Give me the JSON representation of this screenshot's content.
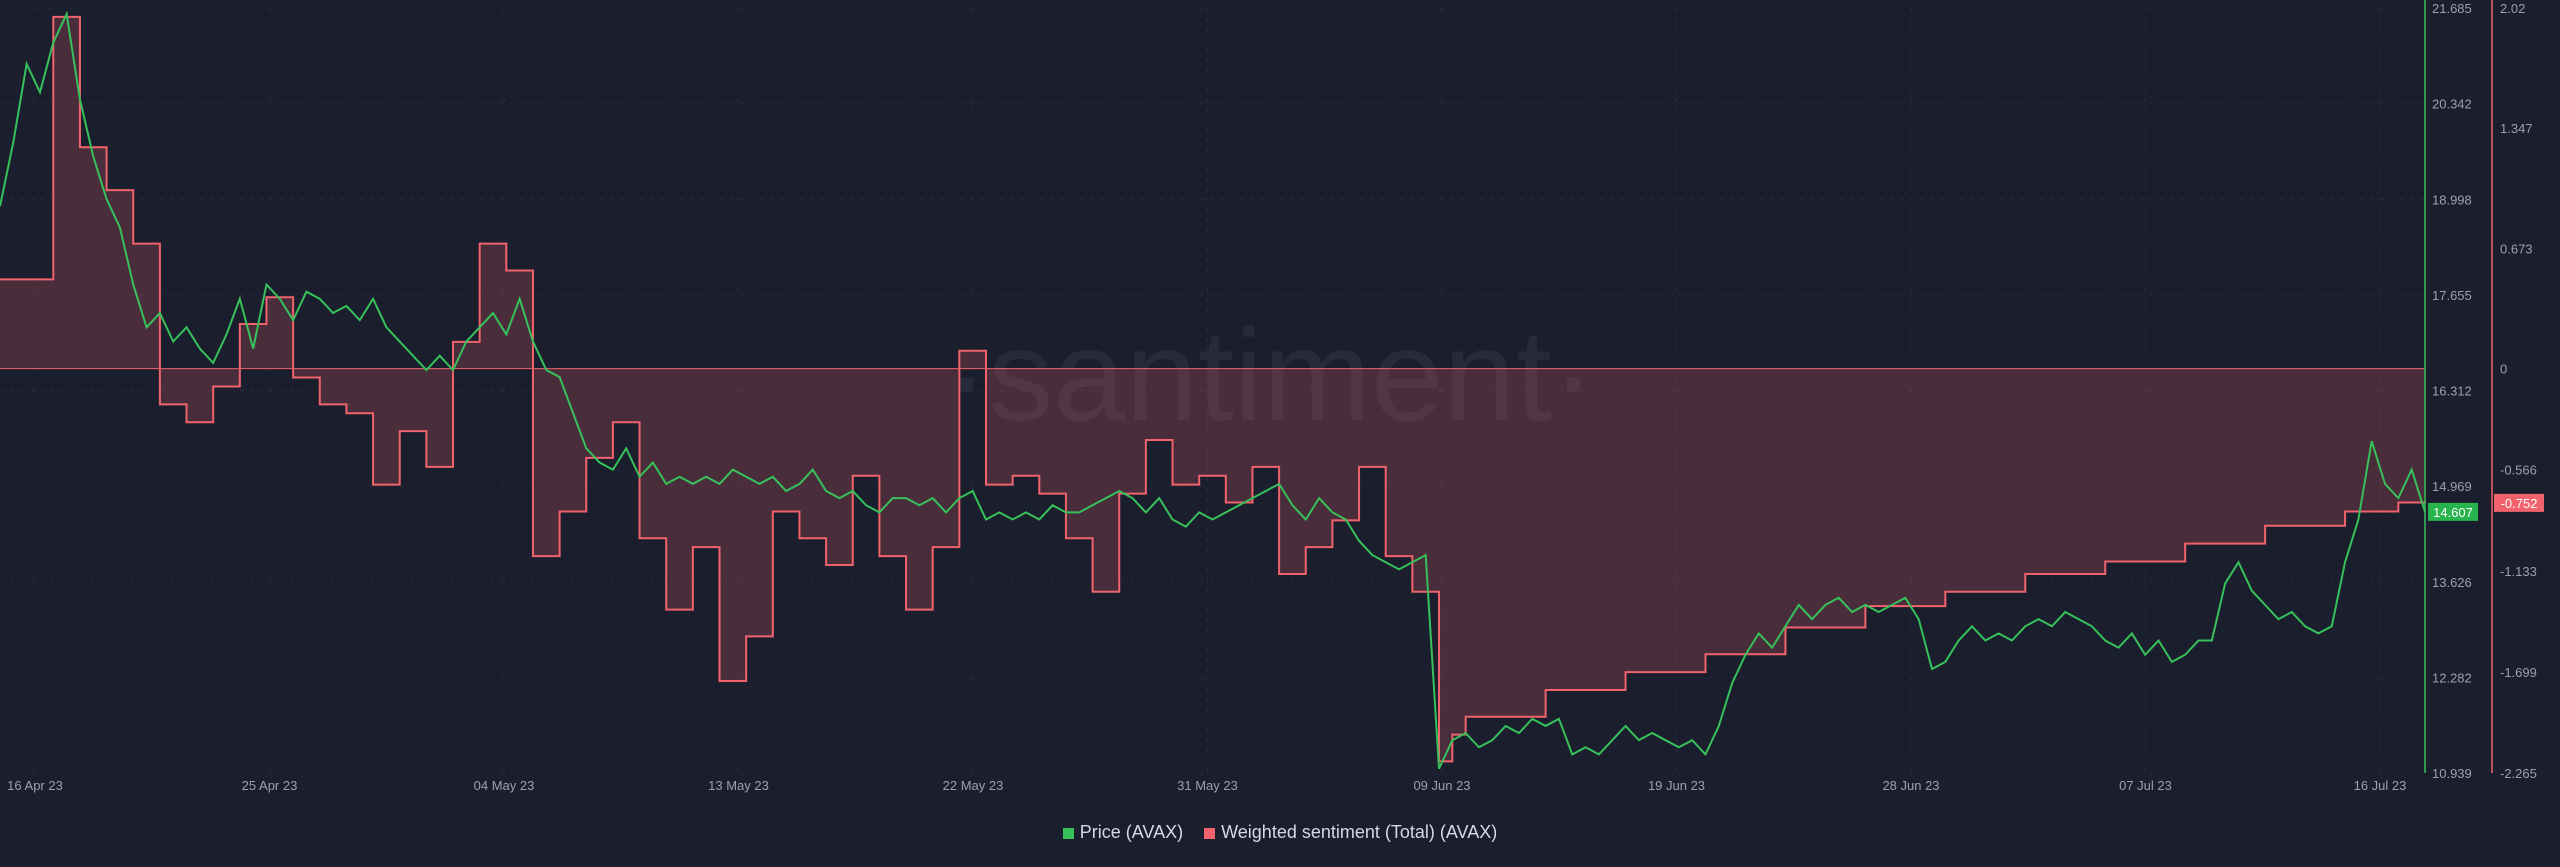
{
  "chart_data": {
    "type": "line",
    "watermark": "·santiment·",
    "x_tick_labels": [
      "16 Apr 23",
      "25 Apr 23",
      "04 May 23",
      "13 May 23",
      "22 May 23",
      "31 May 23",
      "09 Jun 23",
      "19 Jun 23",
      "28 Jun 23",
      "07 Jul 23",
      "16 Jul 23"
    ],
    "y_left_ticks": [
      "21.685",
      "20.342",
      "18.998",
      "17.655",
      "16.312",
      "14.969",
      "13.626",
      "12.282",
      "10.939"
    ],
    "y_right_ticks": [
      "2.02",
      "1.347",
      "0.673",
      "0",
      "-0.566",
      "-1.133",
      "-1.699",
      "-2.265"
    ],
    "ylim_price": [
      10.939,
      21.685
    ],
    "ylim_sentiment": [
      -2.265,
      2.02
    ],
    "x_days": [
      0,
      91
    ],
    "series": [
      {
        "name": "Price (AVAX)",
        "color": "#36c15a",
        "last_value": "14.607",
        "points": [
          [
            0,
            18.9
          ],
          [
            0.5,
            19.8
          ],
          [
            1,
            20.9
          ],
          [
            1.5,
            20.5
          ],
          [
            2,
            21.2
          ],
          [
            2.5,
            21.6
          ],
          [
            3,
            20.4
          ],
          [
            3.5,
            19.6
          ],
          [
            4,
            19.0
          ],
          [
            4.5,
            18.6
          ],
          [
            5,
            17.8
          ],
          [
            5.5,
            17.2
          ],
          [
            6,
            17.4
          ],
          [
            6.5,
            17.0
          ],
          [
            7,
            17.2
          ],
          [
            7.5,
            16.9
          ],
          [
            8,
            16.7
          ],
          [
            8.5,
            17.1
          ],
          [
            9,
            17.6
          ],
          [
            9.5,
            16.9
          ],
          [
            10,
            17.8
          ],
          [
            10.5,
            17.6
          ],
          [
            11,
            17.3
          ],
          [
            11.5,
            17.7
          ],
          [
            12,
            17.6
          ],
          [
            12.5,
            17.4
          ],
          [
            13,
            17.5
          ],
          [
            13.5,
            17.3
          ],
          [
            14,
            17.6
          ],
          [
            14.5,
            17.2
          ],
          [
            15,
            17.0
          ],
          [
            15.5,
            16.8
          ],
          [
            16,
            16.6
          ],
          [
            16.5,
            16.8
          ],
          [
            17,
            16.6
          ],
          [
            17.5,
            17.0
          ],
          [
            18,
            17.2
          ],
          [
            18.5,
            17.4
          ],
          [
            19,
            17.1
          ],
          [
            19.5,
            17.6
          ],
          [
            20,
            17.0
          ],
          [
            20.5,
            16.6
          ],
          [
            21,
            16.5
          ],
          [
            21.5,
            16.0
          ],
          [
            22,
            15.5
          ],
          [
            22.5,
            15.3
          ],
          [
            23,
            15.2
          ],
          [
            23.5,
            15.5
          ],
          [
            24,
            15.1
          ],
          [
            24.5,
            15.3
          ],
          [
            25,
            15.0
          ],
          [
            25.5,
            15.1
          ],
          [
            26,
            15.0
          ],
          [
            26.5,
            15.1
          ],
          [
            27,
            15.0
          ],
          [
            27.5,
            15.2
          ],
          [
            28,
            15.1
          ],
          [
            28.5,
            15.0
          ],
          [
            29,
            15.1
          ],
          [
            29.5,
            14.9
          ],
          [
            30,
            15.0
          ],
          [
            30.5,
            15.2
          ],
          [
            31,
            14.9
          ],
          [
            31.5,
            14.8
          ],
          [
            32,
            14.9
          ],
          [
            32.5,
            14.7
          ],
          [
            33,
            14.6
          ],
          [
            33.5,
            14.8
          ],
          [
            34,
            14.8
          ],
          [
            34.5,
            14.7
          ],
          [
            35,
            14.8
          ],
          [
            35.5,
            14.6
          ],
          [
            36,
            14.8
          ],
          [
            36.5,
            14.9
          ],
          [
            37,
            14.5
          ],
          [
            37.5,
            14.6
          ],
          [
            38,
            14.5
          ],
          [
            38.5,
            14.6
          ],
          [
            39,
            14.5
          ],
          [
            39.5,
            14.7
          ],
          [
            40,
            14.6
          ],
          [
            40.5,
            14.6
          ],
          [
            41,
            14.7
          ],
          [
            41.5,
            14.8
          ],
          [
            42,
            14.9
          ],
          [
            42.5,
            14.8
          ],
          [
            43,
            14.6
          ],
          [
            43.5,
            14.8
          ],
          [
            44,
            14.5
          ],
          [
            44.5,
            14.4
          ],
          [
            45,
            14.6
          ],
          [
            45.5,
            14.5
          ],
          [
            46,
            14.6
          ],
          [
            46.5,
            14.7
          ],
          [
            47,
            14.8
          ],
          [
            47.5,
            14.9
          ],
          [
            48,
            15.0
          ],
          [
            48.5,
            14.7
          ],
          [
            49,
            14.5
          ],
          [
            49.5,
            14.8
          ],
          [
            50,
            14.6
          ],
          [
            50.5,
            14.5
          ],
          [
            51,
            14.2
          ],
          [
            51.5,
            14.0
          ],
          [
            52,
            13.9
          ],
          [
            52.5,
            13.8
          ],
          [
            53,
            13.9
          ],
          [
            53.5,
            14.0
          ],
          [
            54,
            11.0
          ],
          [
            54.5,
            11.4
          ],
          [
            55,
            11.5
          ],
          [
            55.5,
            11.3
          ],
          [
            56,
            11.4
          ],
          [
            56.5,
            11.6
          ],
          [
            57,
            11.5
          ],
          [
            57.5,
            11.7
          ],
          [
            58,
            11.6
          ],
          [
            58.5,
            11.7
          ],
          [
            59,
            11.2
          ],
          [
            59.5,
            11.3
          ],
          [
            60,
            11.2
          ],
          [
            60.5,
            11.4
          ],
          [
            61,
            11.6
          ],
          [
            61.5,
            11.4
          ],
          [
            62,
            11.5
          ],
          [
            62.5,
            11.4
          ],
          [
            63,
            11.3
          ],
          [
            63.5,
            11.4
          ],
          [
            64,
            11.2
          ],
          [
            64.5,
            11.6
          ],
          [
            65,
            12.2
          ],
          [
            65.5,
            12.6
          ],
          [
            66,
            12.9
          ],
          [
            66.5,
            12.7
          ],
          [
            67,
            13.0
          ],
          [
            67.5,
            13.3
          ],
          [
            68,
            13.1
          ],
          [
            68.5,
            13.3
          ],
          [
            69,
            13.4
          ],
          [
            69.5,
            13.2
          ],
          [
            70,
            13.3
          ],
          [
            70.5,
            13.2
          ],
          [
            71,
            13.3
          ],
          [
            71.5,
            13.4
          ],
          [
            72,
            13.1
          ],
          [
            72.5,
            12.4
          ],
          [
            73,
            12.5
          ],
          [
            73.5,
            12.8
          ],
          [
            74,
            13.0
          ],
          [
            74.5,
            12.8
          ],
          [
            75,
            12.9
          ],
          [
            75.5,
            12.8
          ],
          [
            76,
            13.0
          ],
          [
            76.5,
            13.1
          ],
          [
            77,
            13.0
          ],
          [
            77.5,
            13.2
          ],
          [
            78,
            13.1
          ],
          [
            78.5,
            13.0
          ],
          [
            79,
            12.8
          ],
          [
            79.5,
            12.7
          ],
          [
            80,
            12.9
          ],
          [
            80.5,
            12.6
          ],
          [
            81,
            12.8
          ],
          [
            81.5,
            12.5
          ],
          [
            82,
            12.6
          ],
          [
            82.5,
            12.8
          ],
          [
            83,
            12.8
          ],
          [
            83.5,
            13.6
          ],
          [
            84,
            13.9
          ],
          [
            84.5,
            13.5
          ],
          [
            85,
            13.3
          ],
          [
            85.5,
            13.1
          ],
          [
            86,
            13.2
          ],
          [
            86.5,
            13.0
          ],
          [
            87,
            12.9
          ],
          [
            87.5,
            13.0
          ],
          [
            88,
            13.9
          ],
          [
            88.5,
            14.5
          ],
          [
            89,
            15.6
          ],
          [
            89.5,
            15.0
          ],
          [
            90,
            14.8
          ],
          [
            90.5,
            15.2
          ],
          [
            91,
            14.607
          ]
        ]
      },
      {
        "name": "Weighted sentiment (Total) (AVAX)",
        "color": "#f0636d",
        "last_value": "-0.752",
        "points": [
          [
            0,
            0.5
          ],
          [
            2,
            1.97
          ],
          [
            3,
            1.24
          ],
          [
            4,
            1.0
          ],
          [
            5,
            0.7
          ],
          [
            6,
            -0.2
          ],
          [
            7,
            -0.3
          ],
          [
            8,
            -0.1
          ],
          [
            9,
            0.25
          ],
          [
            10,
            0.4
          ],
          [
            11,
            -0.05
          ],
          [
            12,
            -0.2
          ],
          [
            13,
            -0.25
          ],
          [
            14,
            -0.65
          ],
          [
            15,
            -0.35
          ],
          [
            16,
            -0.55
          ],
          [
            17,
            0.15
          ],
          [
            18,
            0.7
          ],
          [
            19,
            0.55
          ],
          [
            20,
            -1.05
          ],
          [
            21,
            -0.8
          ],
          [
            22,
            -0.5
          ],
          [
            23,
            -0.3
          ],
          [
            24,
            -0.95
          ],
          [
            25,
            -1.35
          ],
          [
            26,
            -1.0
          ],
          [
            27,
            -1.75
          ],
          [
            28,
            -1.5
          ],
          [
            29,
            -0.8
          ],
          [
            30,
            -0.95
          ],
          [
            31,
            -1.1
          ],
          [
            32,
            -0.6
          ],
          [
            33,
            -1.05
          ],
          [
            34,
            -1.35
          ],
          [
            35,
            -1.0
          ],
          [
            36,
            0.1
          ],
          [
            37,
            -0.65
          ],
          [
            38,
            -0.6
          ],
          [
            39,
            -0.7
          ],
          [
            40,
            -0.95
          ],
          [
            41,
            -1.25
          ],
          [
            42,
            -0.7
          ],
          [
            43,
            -0.4
          ],
          [
            44,
            -0.65
          ],
          [
            45,
            -0.6
          ],
          [
            46,
            -0.75
          ],
          [
            47,
            -0.55
          ],
          [
            48,
            -1.15
          ],
          [
            49,
            -1.0
          ],
          [
            50,
            -0.85
          ],
          [
            51,
            -0.55
          ],
          [
            52,
            -1.05
          ],
          [
            53,
            -1.25
          ],
          [
            54,
            -2.2
          ],
          [
            54.5,
            -2.05
          ],
          [
            55,
            -1.95
          ],
          [
            58,
            -1.8
          ],
          [
            61,
            -1.7
          ],
          [
            64,
            -1.6
          ],
          [
            67,
            -1.45
          ],
          [
            70,
            -1.33
          ],
          [
            73,
            -1.25
          ],
          [
            76,
            -1.15
          ],
          [
            79,
            -1.08
          ],
          [
            82,
            -0.98
          ],
          [
            85,
            -0.88
          ],
          [
            88,
            -0.8
          ],
          [
            90,
            -0.75
          ],
          [
            91,
            -0.752
          ]
        ]
      }
    ]
  },
  "legend": {
    "price_label": "Price (AVAX)",
    "price_color": "#36c15a",
    "sentiment_label": "Weighted sentiment (Total) (AVAX)",
    "sentiment_color": "#f0636d"
  }
}
